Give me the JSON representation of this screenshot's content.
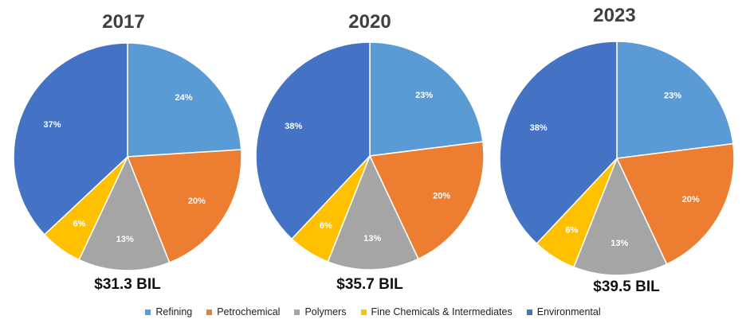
{
  "chart_data": {
    "type": "pie",
    "legend": {
      "position": "bottom",
      "entries": [
        {
          "label": "Refining",
          "color": "#5B9BD5"
        },
        {
          "label": "Petrochemical",
          "color": "#ED7D31"
        },
        {
          "label": "Polymers",
          "color": "#A5A5A5"
        },
        {
          "label": "Fine Chemicals & Intermediates",
          "color": "#FFC000"
        },
        {
          "label": "Environmental",
          "color": "#4472C4"
        }
      ]
    },
    "charts": [
      {
        "title": "2017",
        "total": "$31.3 BIL",
        "values": [
          24,
          20,
          13,
          6,
          37
        ],
        "labels": [
          "24%",
          "20%",
          "13%",
          "6%",
          "37%"
        ]
      },
      {
        "title": "2020",
        "total": "$35.7 BIL",
        "values": [
          23,
          20,
          13,
          6,
          38
        ],
        "labels": [
          "23%",
          "20%",
          "13%",
          "6%",
          "38%"
        ]
      },
      {
        "title": "2023",
        "total": "$39.5 BIL",
        "values": [
          23,
          20,
          13,
          6,
          38
        ],
        "labels": [
          "23%",
          "20%",
          "13%",
          "6%",
          "38%"
        ]
      }
    ]
  }
}
